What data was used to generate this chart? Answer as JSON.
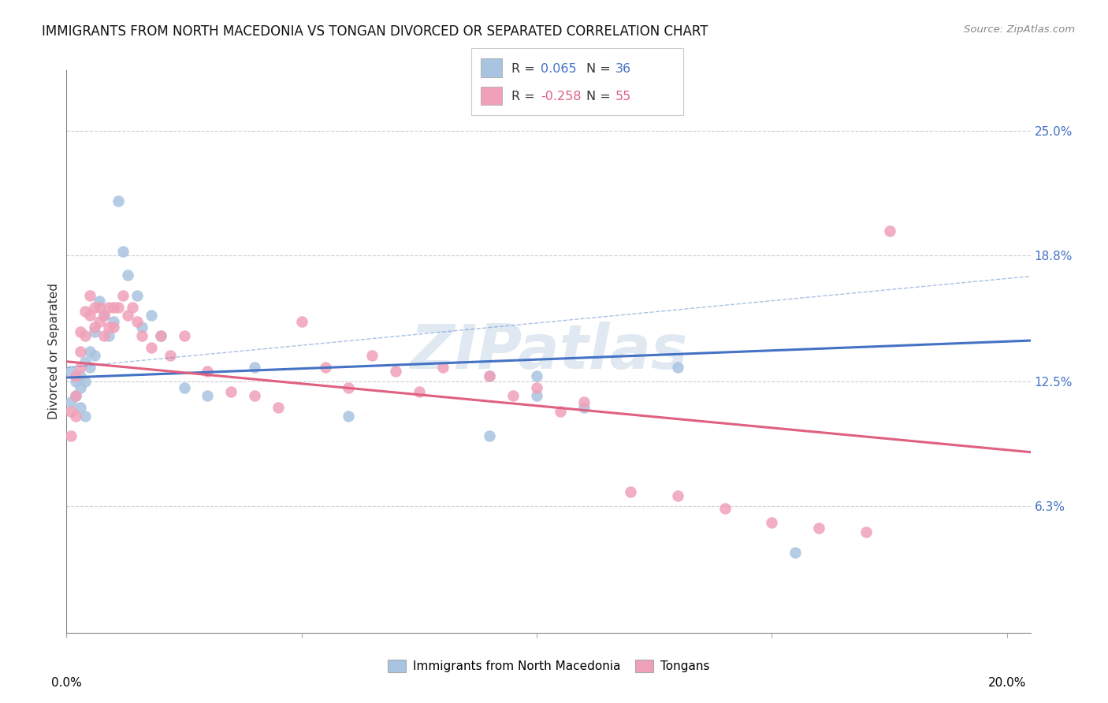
{
  "title": "IMMIGRANTS FROM NORTH MACEDONIA VS TONGAN DIVORCED OR SEPARATED CORRELATION CHART",
  "source": "Source: ZipAtlas.com",
  "ylabel": "Divorced or Separated",
  "ytick_vals": [
    0.0,
    0.063,
    0.125,
    0.188,
    0.25
  ],
  "ytick_labels": [
    "",
    "6.3%",
    "12.5%",
    "18.8%",
    "25.0%"
  ],
  "xlim": [
    0.0,
    0.205
  ],
  "ylim": [
    0.0,
    0.28
  ],
  "blue_color": "#a8c4e0",
  "pink_color": "#f0a0b8",
  "line_blue_color": "#4472c4",
  "line_pink_color": "#e06080",
  "blue_scatter_x": [
    0.001,
    0.001,
    0.002,
    0.002,
    0.003,
    0.003,
    0.003,
    0.004,
    0.004,
    0.004,
    0.005,
    0.005,
    0.006,
    0.006,
    0.007,
    0.008,
    0.009,
    0.01,
    0.011,
    0.012,
    0.013,
    0.015,
    0.016,
    0.018,
    0.02,
    0.025,
    0.03,
    0.04,
    0.06,
    0.09,
    0.1,
    0.11,
    0.13,
    0.09,
    0.155,
    0.1
  ],
  "blue_scatter_y": [
    0.13,
    0.115,
    0.125,
    0.118,
    0.128,
    0.122,
    0.112,
    0.135,
    0.125,
    0.108,
    0.14,
    0.132,
    0.15,
    0.138,
    0.165,
    0.158,
    0.148,
    0.155,
    0.215,
    0.19,
    0.178,
    0.168,
    0.152,
    0.158,
    0.148,
    0.122,
    0.118,
    0.132,
    0.108,
    0.128,
    0.118,
    0.112,
    0.132,
    0.098,
    0.04,
    0.128
  ],
  "pink_scatter_x": [
    0.001,
    0.001,
    0.002,
    0.002,
    0.002,
    0.003,
    0.003,
    0.003,
    0.004,
    0.004,
    0.005,
    0.005,
    0.006,
    0.006,
    0.007,
    0.007,
    0.008,
    0.008,
    0.009,
    0.009,
    0.01,
    0.01,
    0.011,
    0.012,
    0.013,
    0.014,
    0.015,
    0.016,
    0.018,
    0.02,
    0.022,
    0.025,
    0.03,
    0.035,
    0.04,
    0.045,
    0.05,
    0.055,
    0.06,
    0.065,
    0.07,
    0.075,
    0.08,
    0.09,
    0.095,
    0.1,
    0.105,
    0.11,
    0.12,
    0.13,
    0.14,
    0.15,
    0.16,
    0.17,
    0.175
  ],
  "pink_scatter_y": [
    0.11,
    0.098,
    0.128,
    0.118,
    0.108,
    0.15,
    0.14,
    0.132,
    0.16,
    0.148,
    0.168,
    0.158,
    0.162,
    0.152,
    0.162,
    0.155,
    0.158,
    0.148,
    0.162,
    0.152,
    0.162,
    0.152,
    0.162,
    0.168,
    0.158,
    0.162,
    0.155,
    0.148,
    0.142,
    0.148,
    0.138,
    0.148,
    0.13,
    0.12,
    0.118,
    0.112,
    0.155,
    0.132,
    0.122,
    0.138,
    0.13,
    0.12,
    0.132,
    0.128,
    0.118,
    0.122,
    0.11,
    0.115,
    0.07,
    0.068,
    0.062,
    0.055,
    0.052,
    0.05,
    0.2
  ]
}
